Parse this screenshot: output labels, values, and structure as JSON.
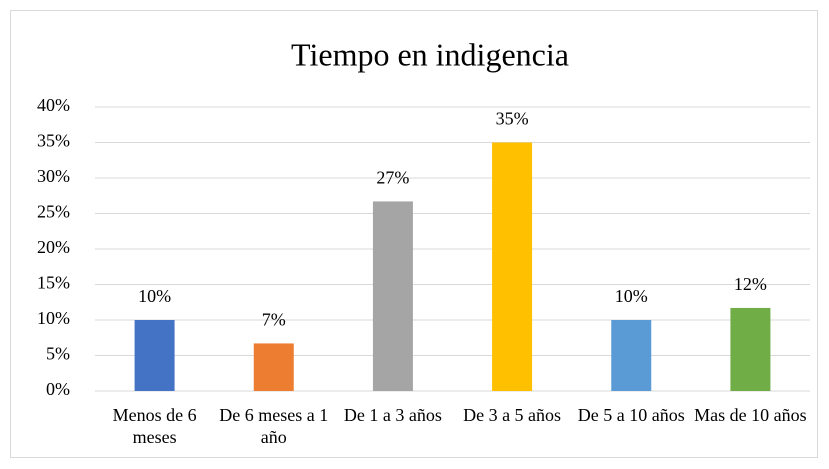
{
  "chart_data": {
    "type": "bar",
    "title": "Tiempo en indigencia",
    "categories": [
      "Menos de 6 meses",
      "De 6 meses a 1 año",
      "De 1 a 3 años",
      "De 3 a 5 años",
      "De 5 a 10 años",
      "Mas de 10 años"
    ],
    "values": [
      10,
      6.7,
      26.7,
      35,
      10,
      11.7
    ],
    "value_labels": [
      "10%",
      "7%",
      "27%",
      "35%",
      "10%",
      "12%"
    ],
    "colors": [
      "#4472c4",
      "#ed7d31",
      "#a5a5a5",
      "#ffc000",
      "#5b9bd5",
      "#70ad47"
    ],
    "ylim": [
      0,
      40
    ],
    "yticks": [
      {
        "value": 0,
        "label": "0%"
      },
      {
        "value": 5,
        "label": "5%"
      },
      {
        "value": 10,
        "label": "10%"
      },
      {
        "value": 15,
        "label": "15%"
      },
      {
        "value": 20,
        "label": "20%"
      },
      {
        "value": 25,
        "label": "25%"
      },
      {
        "value": 30,
        "label": "30%"
      },
      {
        "value": 35,
        "label": "35%"
      },
      {
        "value": 40,
        "label": "40%"
      }
    ],
    "grid": true
  }
}
